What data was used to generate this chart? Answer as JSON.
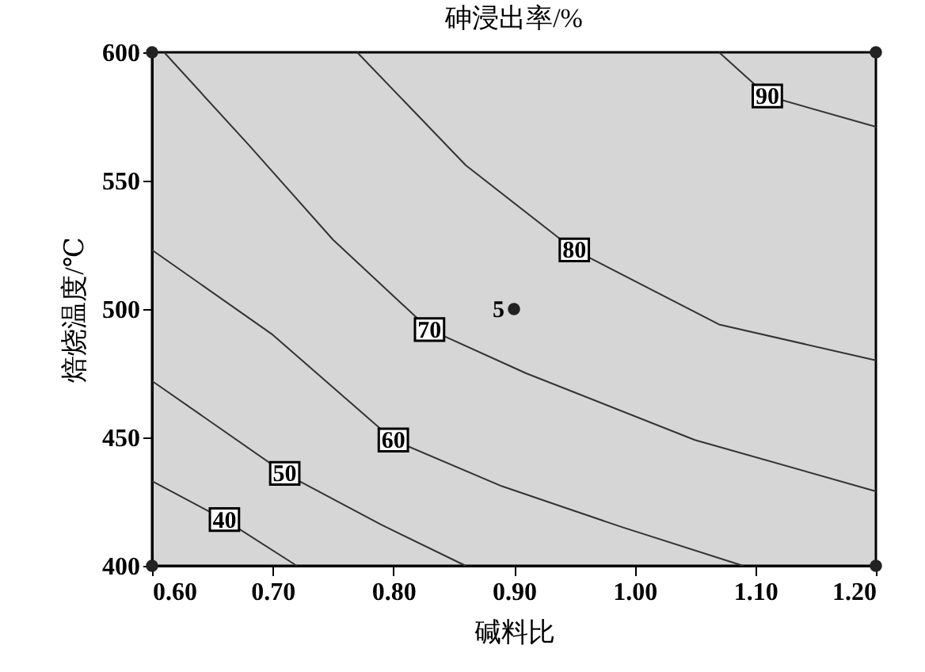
{
  "chart_data": {
    "type": "line",
    "title": "砷浸出率/%",
    "xlabel": "碱料比",
    "ylabel": "焙烧温度/℃",
    "xlim": [
      0.6,
      1.2
    ],
    "ylim": [
      400,
      600
    ],
    "xticks": [
      {
        "value": 0.6,
        "label": "0.60"
      },
      {
        "value": 0.7,
        "label": "0.70"
      },
      {
        "value": 0.8,
        "label": "0.80"
      },
      {
        "value": 0.9,
        "label": "0.90"
      },
      {
        "value": 1.0,
        "label": "1.00"
      },
      {
        "value": 1.1,
        "label": "1.10"
      },
      {
        "value": 1.2,
        "label": "1.20"
      }
    ],
    "yticks": [
      400,
      450,
      500,
      550,
      600
    ],
    "grid": false,
    "marker": "none",
    "line_style": "solid",
    "series": [
      {
        "name": "40",
        "color": "#333333",
        "x": [
          0.6,
          0.66,
          0.72
        ],
        "values": [
          433,
          418,
          400
        ]
      },
      {
        "name": "50",
        "color": "#333333",
        "x": [
          0.6,
          0.71,
          0.79,
          0.86
        ],
        "values": [
          472,
          436,
          416,
          400
        ]
      },
      {
        "name": "60",
        "color": "#333333",
        "x": [
          0.6,
          0.7,
          0.8,
          0.89,
          0.99,
          1.09
        ],
        "values": [
          523,
          490,
          449,
          431,
          415,
          400
        ]
      },
      {
        "name": "70",
        "color": "#333333",
        "x": [
          0.61,
          0.68,
          0.75,
          0.83,
          0.91,
          1.05,
          1.2
        ],
        "values": [
          600,
          564,
          527,
          492,
          475,
          449,
          429
        ]
      },
      {
        "name": "80",
        "color": "#333333",
        "x": [
          0.77,
          0.86,
          0.95,
          1.07,
          1.2
        ],
        "values": [
          600,
          556,
          523,
          494,
          480
        ]
      },
      {
        "name": "90",
        "color": "#333333",
        "x": [
          1.07,
          1.11,
          1.2
        ],
        "values": [
          600,
          583,
          571
        ]
      },
      {
        "type": "scatter",
        "marker": "circle",
        "color": "#222222",
        "x": [
          0.6,
          0.6,
          0.9,
          1.2,
          1.2
        ],
        "values": [
          400,
          600,
          500,
          400,
          600
        ]
      }
    ],
    "annotations": [
      {
        "text": "5",
        "x": 0.9,
        "y": 500
      }
    ]
  }
}
